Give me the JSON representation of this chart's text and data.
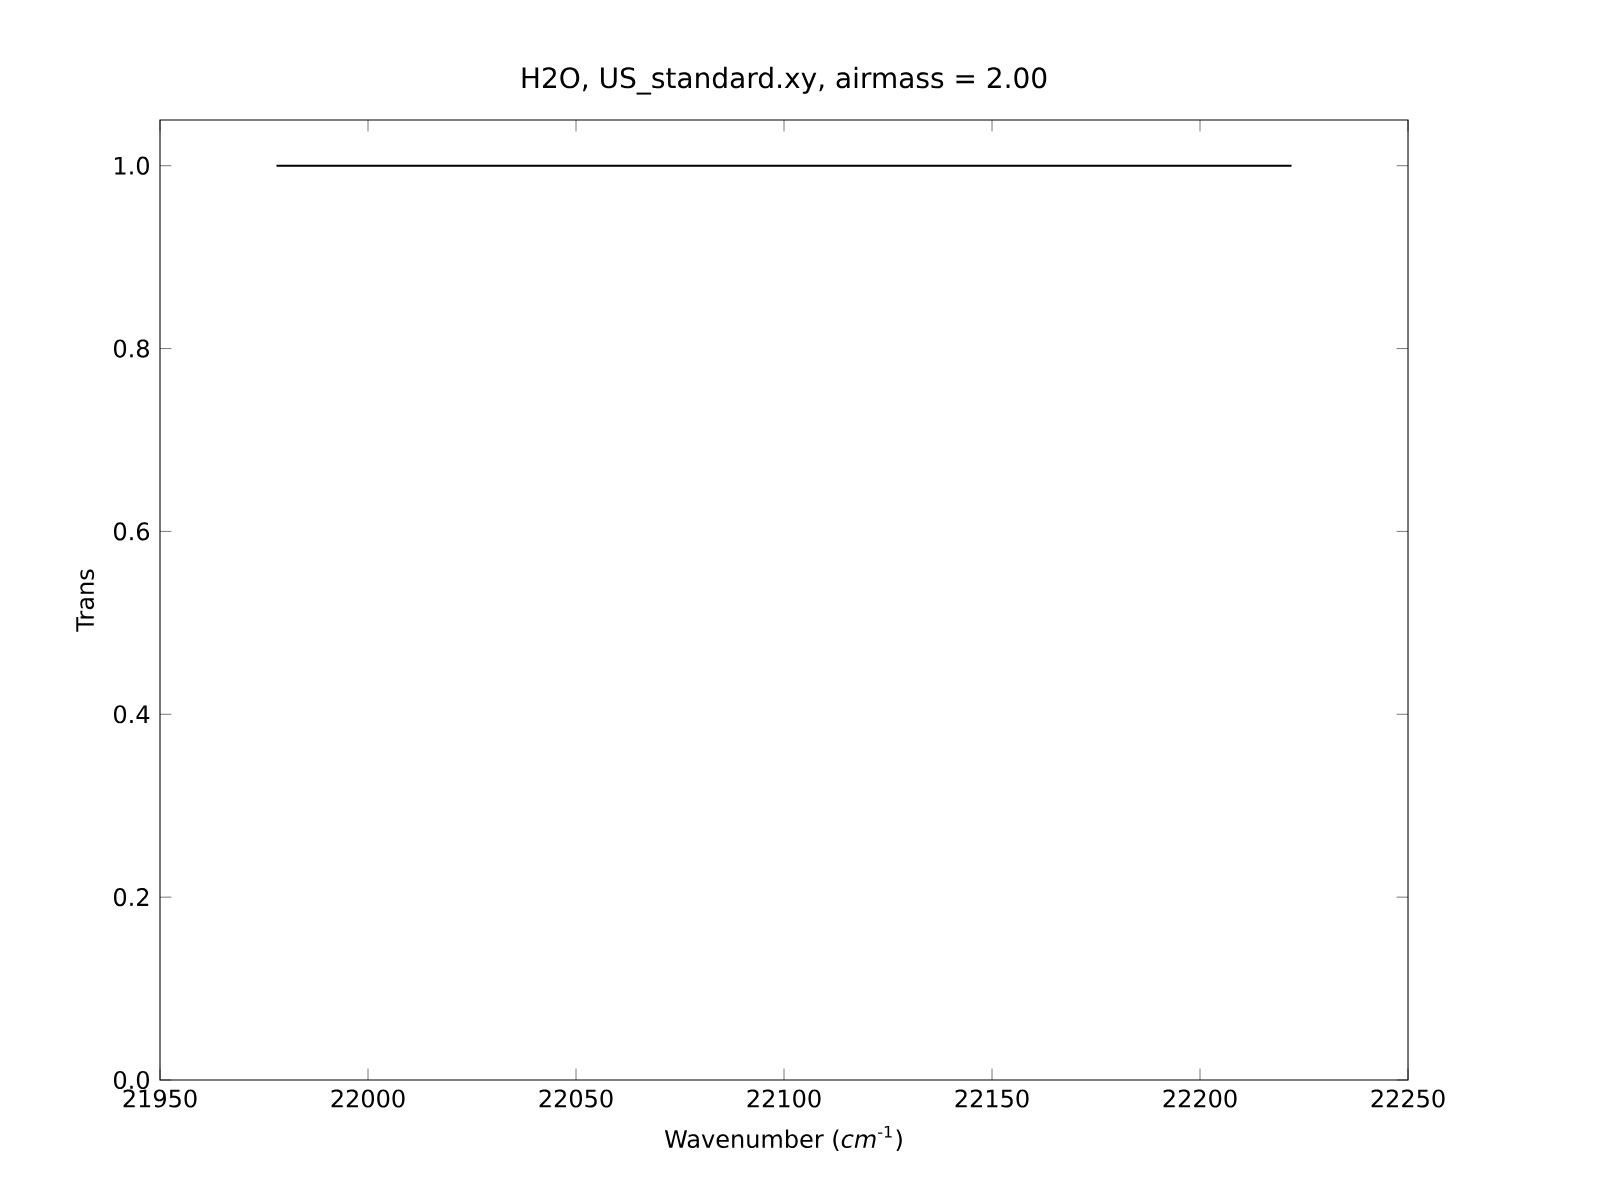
{
  "chart_data": {
    "type": "line",
    "title": "H2O, US_standard.xy, airmass = 2.00",
    "xlabel": "Wavenumber (*cm*$^{-1}$)",
    "ylabel": "Trans",
    "x": [
      21978,
      22222
    ],
    "series": [
      {
        "color": "#000000",
        "values": [
          1.0,
          1.0
        ]
      }
    ],
    "xlim": [
      21950,
      22250
    ],
    "xticks": [
      21950,
      22000,
      22050,
      22100,
      22150,
      22200,
      22250
    ],
    "ylim": [
      0,
      1.05
    ],
    "yticks": [
      {
        "value": 0,
        "label": "0.0"
      },
      {
        "value": 0.2,
        "label": "0.2"
      },
      {
        "value": 0.4,
        "label": "0.4"
      },
      {
        "value": 0.6,
        "label": "0.6"
      },
      {
        "value": 0.8,
        "label": "0.8"
      },
      {
        "value": 1.0,
        "label": "1.0"
      }
    ],
    "grid": false,
    "marker": "none",
    "line_style": "solid"
  }
}
